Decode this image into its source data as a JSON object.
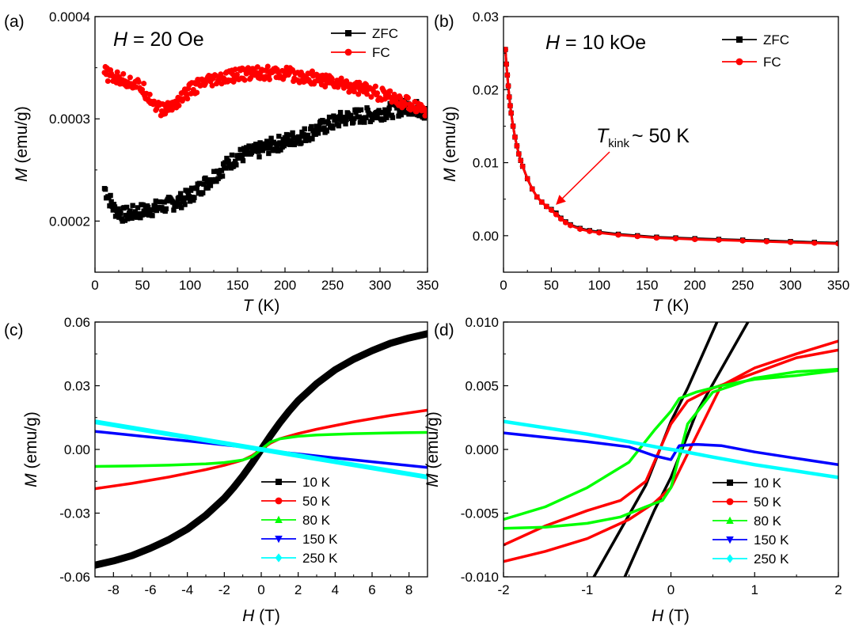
{
  "figure": {
    "width": 1080,
    "height": 800
  },
  "chart_data": [
    {
      "id": "a",
      "type": "scatter",
      "panel_label": "(a)",
      "annotation": {
        "var": "H",
        "text": " = 20 Oe"
      },
      "xlabel": {
        "var": "T",
        "unit": " (K)"
      },
      "ylabel": {
        "var": "M",
        "unit": " (emu/g)"
      },
      "xlim": [
        0,
        350
      ],
      "ylim": [
        0.00015,
        0.0004
      ],
      "xticks": [
        0,
        50,
        100,
        150,
        200,
        250,
        300,
        350
      ],
      "xtick_labels": [
        "0",
        "50",
        "100",
        "150",
        "200",
        "250",
        "300",
        "350"
      ],
      "yticks": [
        0.0002,
        0.0003,
        0.0004
      ],
      "ytick_labels": [
        "0.0002",
        "0.0003",
        "0.0004"
      ],
      "legend": {
        "position": "top-right"
      },
      "series": [
        {
          "name": "ZFC",
          "color": "#000000",
          "marker": "square",
          "noise": 7.5e-06,
          "x": [
            10,
            20,
            30,
            40,
            50,
            60,
            70,
            80,
            90,
            100,
            110,
            120,
            130,
            140,
            150,
            160,
            170,
            180,
            190,
            200,
            210,
            220,
            230,
            240,
            250,
            260,
            270,
            280,
            290,
            300,
            310,
            320,
            330,
            340,
            350
          ],
          "y": [
            0.000232,
            0.000212,
            0.000206,
            0.000208,
            0.00021,
            0.000212,
            0.000214,
            0.000217,
            0.00022,
            0.000225,
            0.000232,
            0.00024,
            0.000248,
            0.000256,
            0.000263,
            0.000266,
            0.000268,
            0.000272,
            0.000275,
            0.000278,
            0.000281,
            0.000284,
            0.000288,
            0.000292,
            0.000296,
            0.0003,
            0.000302,
            0.000303,
            0.000304,
            0.000306,
            0.000308,
            0.00031,
            0.000312,
            0.00031,
            0.000305
          ]
        },
        {
          "name": "FC",
          "color": "#ff0000",
          "marker": "circle",
          "noise": 6.5e-06,
          "x": [
            10,
            20,
            30,
            40,
            50,
            60,
            70,
            80,
            90,
            100,
            110,
            120,
            130,
            140,
            150,
            160,
            170,
            180,
            190,
            200,
            210,
            220,
            230,
            240,
            250,
            260,
            270,
            280,
            290,
            300,
            310,
            320,
            330,
            340,
            350
          ],
          "y": [
            0.000345,
            0.00034,
            0.000338,
            0.000335,
            0.00033,
            0.000318,
            0.000308,
            0.000312,
            0.00032,
            0.000328,
            0.000333,
            0.000336,
            0.000338,
            0.00034,
            0.000343,
            0.000344,
            0.000346,
            0.000345,
            0.000344,
            0.000344,
            0.000343,
            0.000341,
            0.00034,
            0.000338,
            0.000336,
            0.000334,
            0.000332,
            0.00033,
            0.000327,
            0.000324,
            0.000321,
            0.000318,
            0.000315,
            0.000312,
            0.000308
          ]
        }
      ]
    },
    {
      "id": "b",
      "type": "line",
      "panel_label": "(b)",
      "annotation": {
        "var": "H",
        "text": " = 10 kOe"
      },
      "kink": {
        "var": "T",
        "sub": "kink",
        "text": "~ 50 K",
        "x": 52,
        "y": 0.0036
      },
      "xlabel": {
        "var": "T",
        "unit": " (K)"
      },
      "ylabel": {
        "var": "M",
        "unit": " (emu/g)"
      },
      "xlim": [
        0,
        350
      ],
      "ylim": [
        -0.005,
        0.03
      ],
      "xticks": [
        0,
        50,
        100,
        150,
        200,
        250,
        300,
        350
      ],
      "xtick_labels": [
        "0",
        "50",
        "100",
        "150",
        "200",
        "250",
        "300",
        "350"
      ],
      "yticks": [
        0.0,
        0.01,
        0.02,
        0.03
      ],
      "ytick_labels": [
        "0.00",
        "0.01",
        "0.02",
        "0.03"
      ],
      "legend": {
        "position": "top-right"
      },
      "series": [
        {
          "name": "ZFC",
          "color": "#000000",
          "marker": "square",
          "x": [
            2,
            3,
            4,
            5,
            6,
            7,
            8,
            10,
            12,
            14,
            16,
            18,
            20,
            25,
            30,
            35,
            40,
            45,
            50,
            55,
            60,
            65,
            70,
            80,
            90,
            100,
            120,
            140,
            160,
            180,
            200,
            225,
            250,
            275,
            300,
            325,
            350
          ],
          "y": [
            0.0255,
            0.0235,
            0.022,
            0.0205,
            0.019,
            0.0178,
            0.0168,
            0.015,
            0.0135,
            0.0123,
            0.0112,
            0.0103,
            0.0095,
            0.0078,
            0.0064,
            0.0053,
            0.0046,
            0.004,
            0.0036,
            0.0031,
            0.0024,
            0.0019,
            0.0015,
            0.001,
            0.0007,
            0.0005,
            0.0002,
            0.0,
            -0.0002,
            -0.0003,
            -0.0004,
            -0.0005,
            -0.0006,
            -0.0007,
            -0.0008,
            -0.0009,
            -0.001
          ]
        },
        {
          "name": "FC",
          "color": "#ff0000",
          "marker": "circle",
          "x": [
            2,
            3,
            4,
            5,
            6,
            7,
            8,
            10,
            12,
            14,
            16,
            18,
            20,
            25,
            30,
            35,
            40,
            45,
            50,
            55,
            60,
            65,
            70,
            80,
            90,
            100,
            120,
            140,
            160,
            180,
            200,
            225,
            250,
            275,
            300,
            325,
            350
          ],
          "y": [
            0.0255,
            0.0235,
            0.022,
            0.0205,
            0.019,
            0.0178,
            0.0168,
            0.015,
            0.0135,
            0.0123,
            0.0112,
            0.0103,
            0.0095,
            0.0078,
            0.0064,
            0.0053,
            0.0046,
            0.004,
            0.0035,
            0.0029,
            0.0023,
            0.0018,
            0.0014,
            0.0009,
            0.0006,
            0.0004,
            0.0001,
            -0.0001,
            -0.0003,
            -0.0004,
            -0.0005,
            -0.0006,
            -0.0007,
            -0.0008,
            -0.0009,
            -0.001,
            -0.0011
          ]
        }
      ]
    },
    {
      "id": "c",
      "type": "line",
      "panel_label": "(c)",
      "xlabel": {
        "var": "H",
        "unit": " (T)"
      },
      "ylabel": {
        "var": "M",
        "unit": " (emu/g)"
      },
      "xlim": [
        -9,
        9
      ],
      "ylim": [
        -0.06,
        0.06
      ],
      "xticks": [
        -8,
        -6,
        -4,
        -2,
        0,
        2,
        4,
        6,
        8
      ],
      "xtick_labels": [
        "-8",
        "-6",
        "-4",
        "-2",
        "0",
        "2",
        "4",
        "6",
        "8"
      ],
      "yticks": [
        -0.06,
        -0.03,
        0.0,
        0.03,
        0.06
      ],
      "ytick_labels": [
        "-0.06",
        "-0.03",
        "0.00",
        "0.03",
        "0.06"
      ],
      "legend": {
        "position": "bottom-center"
      },
      "series": [
        {
          "name": "10 K",
          "color": "#000000",
          "marker": "square",
          "width": 9,
          "x": [
            -9,
            -8,
            -7,
            -6,
            -5,
            -4,
            -3,
            -2,
            -1.5,
            -1,
            -0.5,
            0,
            0.5,
            1,
            1.5,
            2,
            3,
            4,
            5,
            6,
            7,
            8,
            9
          ],
          "y": [
            -0.0545,
            -0.0525,
            -0.05,
            -0.0465,
            -0.0425,
            -0.0375,
            -0.031,
            -0.023,
            -0.018,
            -0.0125,
            -0.0065,
            0.0,
            0.0065,
            0.0125,
            0.018,
            0.023,
            0.031,
            0.0375,
            0.0425,
            0.0465,
            0.05,
            0.0525,
            0.0545
          ]
        },
        {
          "name": "50 K",
          "color": "#ff0000",
          "marker": "circle",
          "width": 3.5,
          "x": [
            -9,
            -7,
            -5,
            -3,
            -2,
            -1,
            -0.5,
            0,
            0.5,
            1,
            2,
            3,
            5,
            7,
            9
          ],
          "y": [
            -0.0185,
            -0.016,
            -0.013,
            -0.0095,
            -0.0075,
            -0.005,
            -0.003,
            0.0,
            0.003,
            0.005,
            0.0075,
            0.0095,
            0.013,
            0.016,
            0.0185
          ]
        },
        {
          "name": "80 K",
          "color": "#00ff00",
          "marker": "triangle-up",
          "width": 3.5,
          "x": [
            -9,
            -7,
            -5,
            -3,
            -2,
            -1,
            -0.5,
            0,
            0.5,
            1,
            2,
            3,
            5,
            7,
            9
          ],
          "y": [
            -0.008,
            -0.0078,
            -0.0074,
            -0.0068,
            -0.0062,
            -0.005,
            -0.0035,
            0.0,
            0.0035,
            0.005,
            0.0062,
            0.0068,
            0.0074,
            0.0078,
            0.008
          ]
        },
        {
          "name": "150 K",
          "color": "#0000ff",
          "marker": "triangle-down",
          "width": 3.5,
          "x": [
            -9,
            -4,
            -1,
            -0.3,
            0,
            0.3,
            1,
            4,
            9
          ],
          "y": [
            0.0085,
            0.004,
            0.0012,
            0.0004,
            0.0,
            -0.0004,
            -0.0012,
            -0.004,
            -0.0085
          ]
        },
        {
          "name": "250 K",
          "color": "#00ffff",
          "marker": "diamond",
          "width": 6,
          "x": [
            -9,
            -4,
            0,
            4,
            9
          ],
          "y": [
            0.013,
            0.0058,
            0.0,
            -0.0058,
            -0.013
          ]
        }
      ]
    },
    {
      "id": "d",
      "type": "line",
      "panel_label": "(d)",
      "xlabel": {
        "var": "H",
        "unit": " (T)"
      },
      "ylabel": {
        "var": "M",
        "unit": " (emu/g)"
      },
      "xlim": [
        -2,
        2
      ],
      "ylim": [
        -0.01,
        0.01
      ],
      "xticks": [
        -2,
        -1,
        0,
        1,
        2
      ],
      "xtick_labels": [
        "-2",
        "-1",
        "0",
        "1",
        "2"
      ],
      "yticks": [
        -0.01,
        -0.005,
        0.0,
        0.005,
        0.01
      ],
      "ytick_labels": [
        "-0.010",
        "-0.005",
        "0.000",
        "0.005",
        "0.010"
      ],
      "legend": {
        "position": "bottom-right"
      },
      "series": [
        {
          "name": "10 K",
          "color": "#000000",
          "marker": "square",
          "width": 3.5,
          "branches": [
            {
              "x": [
                -0.92,
                -0.6,
                -0.3,
                0.0,
                0.2,
                0.55
              ],
              "y": [
                -0.01,
                -0.0063,
                -0.0028,
                0.0022,
                0.0048,
                0.01
              ]
            },
            {
              "x": [
                -0.55,
                -0.2,
                0.0,
                0.3,
                0.6,
                0.92
              ],
              "y": [
                -0.01,
                -0.0048,
                -0.0022,
                0.0028,
                0.0063,
                0.01
              ]
            }
          ]
        },
        {
          "name": "50 K",
          "color": "#ff0000",
          "marker": "circle",
          "width": 3.5,
          "branches": [
            {
              "x": [
                -2.0,
                -1.5,
                -1.0,
                -0.5,
                -0.2,
                0.0,
                0.3,
                0.6,
                1.0,
                1.5,
                2.0
              ],
              "y": [
                -0.0088,
                -0.008,
                -0.007,
                -0.0055,
                -0.0042,
                -0.003,
                0.001,
                0.005,
                0.0064,
                0.0075,
                0.0085
              ]
            },
            {
              "x": [
                -2.0,
                -1.5,
                -1.0,
                -0.6,
                -0.3,
                0.0,
                0.2,
                0.5,
                1.0,
                1.5,
                2.0
              ],
              "y": [
                -0.0075,
                -0.006,
                -0.0048,
                -0.004,
                -0.0025,
                0.002,
                0.0038,
                0.0048,
                0.006,
                0.0072,
                0.0078
              ]
            }
          ]
        },
        {
          "name": "80 K",
          "color": "#00ff00",
          "marker": "triangle-up",
          "width": 3.5,
          "branches": [
            {
              "x": [
                -2.0,
                -1.5,
                -1.0,
                -0.6,
                -0.3,
                -0.1,
                0.0,
                0.2,
                0.5,
                1.0,
                1.5,
                2.0
              ],
              "y": [
                -0.0062,
                -0.0061,
                -0.0058,
                -0.0053,
                -0.0045,
                -0.004,
                -0.003,
                0.002,
                0.0045,
                0.0056,
                0.0061,
                0.0063
              ]
            },
            {
              "x": [
                -2.0,
                -1.5,
                -1.0,
                -0.5,
                -0.2,
                0.0,
                0.1,
                0.3,
                0.6,
                1.0,
                1.5,
                2.0
              ],
              "y": [
                -0.0055,
                -0.0045,
                -0.003,
                -0.001,
                0.0015,
                0.003,
                0.004,
                0.0045,
                0.005,
                0.0055,
                0.0058,
                0.0062
              ]
            }
          ]
        },
        {
          "name": "150 K",
          "color": "#0000ff",
          "marker": "triangle-down",
          "width": 3.5,
          "x": [
            -2.0,
            -1.0,
            -0.5,
            -0.2,
            0.0,
            0.1,
            0.3,
            0.6,
            1.0,
            1.5,
            2.0
          ],
          "y": [
            0.0013,
            0.0006,
            0.0002,
            -0.0005,
            -0.0008,
            0.0003,
            0.0004,
            0.0003,
            -0.0002,
            -0.0007,
            -0.0012
          ]
        },
        {
          "name": "250 K",
          "color": "#00ffff",
          "marker": "diamond",
          "width": 4.5,
          "x": [
            -2.0,
            -1.0,
            -0.5,
            -0.1,
            0.0,
            0.1,
            0.5,
            1.0,
            2.0
          ],
          "y": [
            0.0022,
            0.0012,
            0.0006,
            0.0001,
            0.0,
            -0.0001,
            -0.0006,
            -0.0012,
            -0.0022
          ]
        }
      ]
    }
  ]
}
